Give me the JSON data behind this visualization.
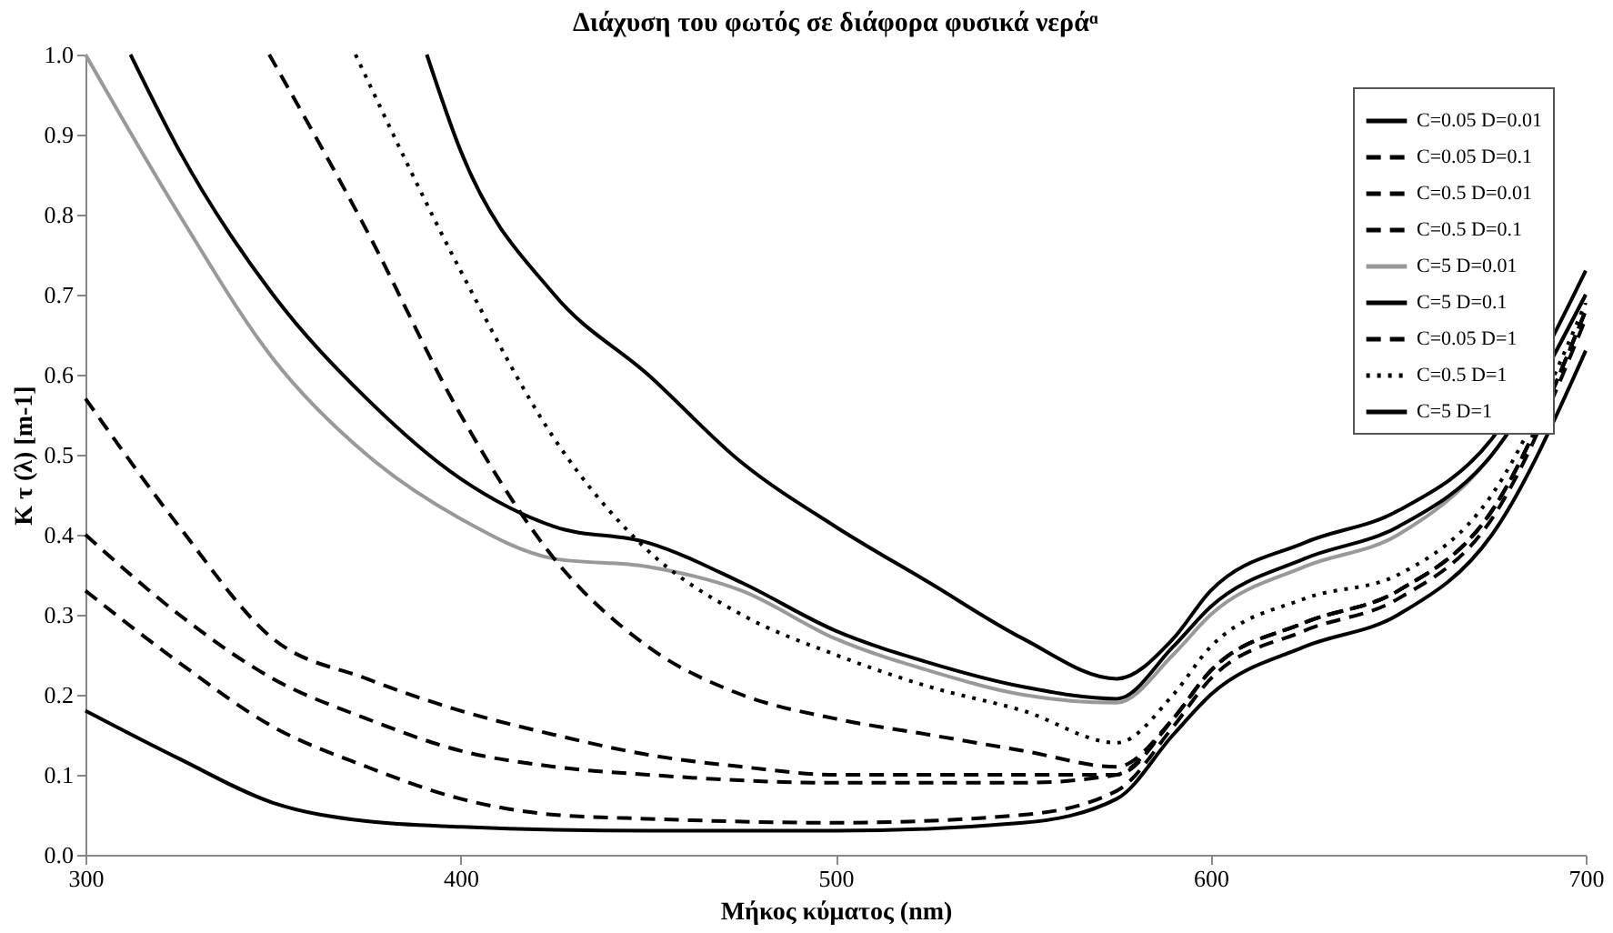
{
  "chart_data": {
    "type": "line",
    "title": "Διάχυση του φωτός σε διάφορα φυσικά νεράᵅ",
    "xlabel": "Μήκος κύματος (nm)",
    "ylabel": "K τ (λ) [m-1]",
    "xlim": [
      300,
      700
    ],
    "xticks": [
      300,
      400,
      500,
      600,
      700
    ],
    "ylim": [
      0,
      1
    ],
    "yticks": [
      {
        "value": 0,
        "label": "0.0"
      },
      0.1,
      0.2,
      0.3,
      0.4,
      0.5,
      0.6,
      0.7,
      0.8,
      0.9,
      {
        "value": 1,
        "label": "1.0"
      }
    ],
    "grid": false,
    "legend": "top right",
    "marker": "none",
    "series": [
      {
        "name": "C=0.05 D=0.01",
        "color": "#000000",
        "line_style": "solid",
        "x": [
          300,
          325,
          350,
          375,
          400,
          450,
          500,
          550,
          575,
          590,
          600,
          625,
          650,
          675,
          700
        ],
        "values": [
          0.18,
          0.12,
          0.065,
          0.042,
          0.035,
          0.03,
          0.03,
          0.04,
          0.07,
          0.15,
          0.2,
          0.26,
          0.3,
          0.4,
          0.63
        ]
      },
      {
        "name": "C=0.05 D=0.1",
        "color": "#000000",
        "line_style": "dashed",
        "x": [
          300,
          325,
          350,
          375,
          400,
          425,
          450,
          500,
          550,
          575,
          590,
          600,
          625,
          650,
          675,
          700
        ],
        "values": [
          0.33,
          0.24,
          0.16,
          0.11,
          0.07,
          0.05,
          0.045,
          0.04,
          0.05,
          0.08,
          0.16,
          0.22,
          0.28,
          0.32,
          0.42,
          0.67
        ]
      },
      {
        "name": "C=0.5 D=0.01",
        "color": "#000000",
        "line_style": "dashed",
        "x": [
          300,
          325,
          350,
          375,
          400,
          425,
          450,
          500,
          550,
          575,
          590,
          600,
          625,
          650,
          675,
          700
        ],
        "values": [
          0.4,
          0.3,
          0.22,
          0.17,
          0.13,
          0.11,
          0.1,
          0.09,
          0.09,
          0.1,
          0.17,
          0.23,
          0.29,
          0.33,
          0.43,
          0.68
        ]
      },
      {
        "name": "C=0.5 D=0.1",
        "color": "#000000",
        "line_style": "dashed",
        "x": [
          300,
          325,
          350,
          375,
          400,
          425,
          450,
          475,
          500,
          550,
          575,
          590,
          600,
          625,
          650,
          675,
          700
        ],
        "values": [
          0.57,
          0.41,
          0.27,
          0.22,
          0.18,
          0.15,
          0.125,
          0.11,
          0.1,
          0.1,
          0.1,
          0.17,
          0.23,
          0.29,
          0.33,
          0.43,
          0.68
        ]
      },
      {
        "name": "C=5 D=0.01",
        "color": "#999999",
        "line_style": "solid",
        "x": [
          300,
          325,
          350,
          375,
          400,
          425,
          450,
          475,
          500,
          525,
          550,
          575,
          590,
          600,
          625,
          650,
          675,
          700
        ],
        "values": [
          1.0,
          0.8,
          0.62,
          0.5,
          0.42,
          0.37,
          0.36,
          0.33,
          0.27,
          0.23,
          0.2,
          0.19,
          0.25,
          0.3,
          0.36,
          0.4,
          0.5,
          0.7
        ]
      },
      {
        "name": "C=5 D=0.1",
        "color": "#000000",
        "line_style": "solid",
        "x": [
          312,
          325,
          350,
          375,
          400,
          425,
          450,
          475,
          500,
          525,
          550,
          575,
          590,
          600,
          625,
          650,
          675,
          700
        ],
        "values": [
          1.0,
          0.88,
          0.7,
          0.57,
          0.47,
          0.41,
          0.39,
          0.34,
          0.28,
          0.24,
          0.21,
          0.195,
          0.26,
          0.31,
          0.37,
          0.41,
          0.5,
          0.7
        ]
      },
      {
        "name": "C=0.05 D=1",
        "color": "#000000",
        "line_style": "dashed",
        "x": [
          349,
          375,
          400,
          425,
          450,
          475,
          500,
          525,
          550,
          575,
          590,
          600,
          625,
          650,
          675,
          700
        ],
        "values": [
          1.0,
          0.78,
          0.55,
          0.37,
          0.26,
          0.2,
          0.17,
          0.15,
          0.13,
          0.11,
          0.17,
          0.23,
          0.29,
          0.33,
          0.43,
          0.68
        ]
      },
      {
        "name": "C=0.5 D=1",
        "color": "#000000",
        "line_style": "dotted",
        "x": [
          372,
          400,
          425,
          450,
          475,
          500,
          525,
          550,
          575,
          590,
          600,
          625,
          650,
          675,
          700
        ],
        "values": [
          1.0,
          0.73,
          0.52,
          0.38,
          0.3,
          0.25,
          0.21,
          0.18,
          0.14,
          0.2,
          0.26,
          0.32,
          0.35,
          0.45,
          0.69
        ]
      },
      {
        "name": "C=5 D=1",
        "color": "#000000",
        "line_style": "solid",
        "x": [
          391,
          400,
          425,
          450,
          475,
          500,
          525,
          550,
          575,
          590,
          600,
          625,
          650,
          675,
          700
        ],
        "values": [
          1.0,
          0.88,
          0.7,
          0.6,
          0.49,
          0.41,
          0.34,
          0.27,
          0.22,
          0.27,
          0.33,
          0.39,
          0.43,
          0.52,
          0.73
        ]
      }
    ]
  }
}
